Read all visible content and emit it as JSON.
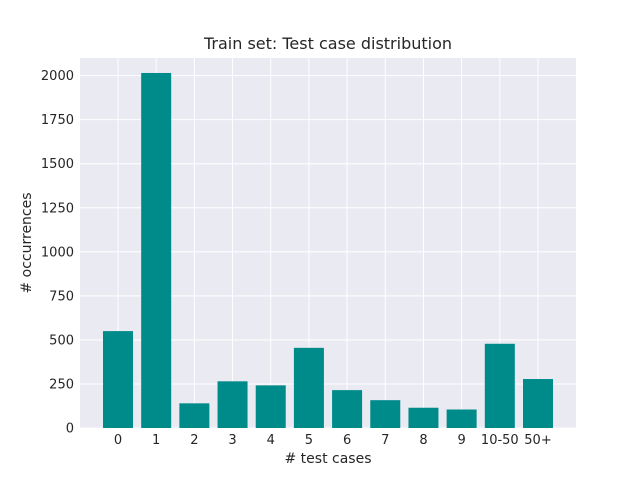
{
  "chart_data": {
    "type": "bar",
    "title": "Train set: Test case distribution",
    "xlabel": "# test cases",
    "ylabel": "# occurrences",
    "categories": [
      "0",
      "1",
      "2",
      "3",
      "4",
      "5",
      "6",
      "7",
      "8",
      "9",
      "10-50",
      "50+"
    ],
    "values": [
      550,
      2015,
      140,
      265,
      242,
      455,
      215,
      158,
      115,
      105,
      478,
      278
    ],
    "ylim": [
      0,
      2100
    ],
    "yticks": [
      0,
      250,
      500,
      750,
      1000,
      1250,
      1500,
      1750,
      2000
    ],
    "grid": true,
    "bar_color": "#008b8b",
    "background_color": "#eaeaf2",
    "grid_color": "#ffffff"
  }
}
